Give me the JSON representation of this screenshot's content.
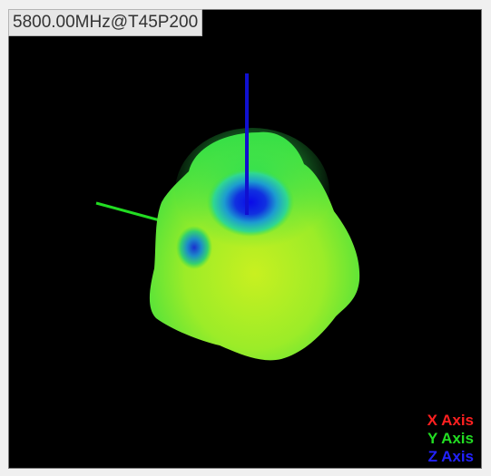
{
  "window": {
    "title": "5800.00MHz@T45P200"
  },
  "legend": {
    "x_label": "X Axis",
    "y_label": "Y Axis",
    "z_label": "Z Axis",
    "x_color": "#ff2020",
    "y_color": "#22dd22",
    "z_color": "#2222ff"
  },
  "colors": {
    "background": "#000000",
    "surface_high": "#c8f020",
    "surface_mid": "#40e040",
    "surface_low": "#1010e0"
  }
}
